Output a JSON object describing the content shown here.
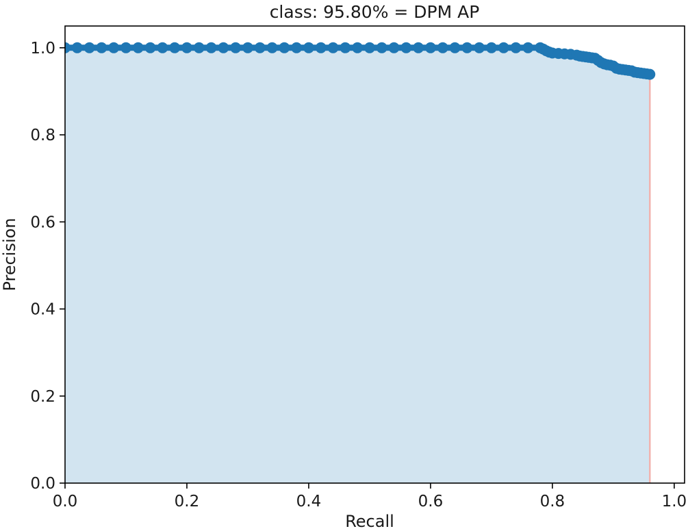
{
  "chart_data": {
    "type": "line",
    "title": "class: 95.80% = DPM AP",
    "xlabel": "Recall",
    "ylabel": "Precision",
    "xlim": [
      0.0,
      1.017
    ],
    "ylim": [
      0.0,
      1.05
    ],
    "x_tick_values": [
      0.0,
      0.2,
      0.4,
      0.6,
      0.8,
      1.0
    ],
    "x_tick_labels": [
      "0.0",
      "0.2",
      "0.4",
      "0.6",
      "0.8",
      "1.0"
    ],
    "y_tick_values": [
      0.0,
      0.2,
      0.4,
      0.6,
      0.8,
      1.0
    ],
    "y_tick_labels": [
      "0.0",
      "0.2",
      "0.4",
      "0.6",
      "0.8",
      "1.0"
    ],
    "grid": false,
    "legend": "none",
    "colors": {
      "curve": "#1f77b4",
      "fill_under_curve": "#d2e4f0",
      "recall_end_line": "#f2b3ae",
      "spine": "#000000"
    },
    "series": [
      {
        "name": "precision-recall-curve",
        "marker": "circle",
        "points": [
          [
            0.0,
            1.0
          ],
          [
            0.02,
            1.0
          ],
          [
            0.04,
            1.0
          ],
          [
            0.06,
            1.0
          ],
          [
            0.08,
            1.0
          ],
          [
            0.1,
            1.0
          ],
          [
            0.12,
            1.0
          ],
          [
            0.14,
            1.0
          ],
          [
            0.16,
            1.0
          ],
          [
            0.18,
            1.0
          ],
          [
            0.2,
            1.0
          ],
          [
            0.22,
            1.0
          ],
          [
            0.24,
            1.0
          ],
          [
            0.26,
            1.0
          ],
          [
            0.28,
            1.0
          ],
          [
            0.3,
            1.0
          ],
          [
            0.32,
            1.0
          ],
          [
            0.34,
            1.0
          ],
          [
            0.36,
            1.0
          ],
          [
            0.38,
            1.0
          ],
          [
            0.4,
            1.0
          ],
          [
            0.42,
            1.0
          ],
          [
            0.44,
            1.0
          ],
          [
            0.46,
            1.0
          ],
          [
            0.48,
            1.0
          ],
          [
            0.5,
            1.0
          ],
          [
            0.52,
            1.0
          ],
          [
            0.54,
            1.0
          ],
          [
            0.56,
            1.0
          ],
          [
            0.58,
            1.0
          ],
          [
            0.6,
            1.0
          ],
          [
            0.62,
            1.0
          ],
          [
            0.64,
            1.0
          ],
          [
            0.66,
            1.0
          ],
          [
            0.68,
            1.0
          ],
          [
            0.7,
            1.0
          ],
          [
            0.72,
            1.0
          ],
          [
            0.74,
            1.0
          ],
          [
            0.76,
            1.0
          ],
          [
            0.78,
            1.0
          ],
          [
            0.785,
            0.997
          ],
          [
            0.79,
            0.993
          ],
          [
            0.795,
            0.99
          ],
          [
            0.8,
            0.988
          ],
          [
            0.81,
            0.987
          ],
          [
            0.82,
            0.986
          ],
          [
            0.83,
            0.985
          ],
          [
            0.84,
            0.983
          ],
          [
            0.845,
            0.981
          ],
          [
            0.85,
            0.98
          ],
          [
            0.855,
            0.979
          ],
          [
            0.86,
            0.978
          ],
          [
            0.865,
            0.977
          ],
          [
            0.87,
            0.976
          ],
          [
            0.875,
            0.971
          ],
          [
            0.88,
            0.966
          ],
          [
            0.885,
            0.963
          ],
          [
            0.89,
            0.961
          ],
          [
            0.895,
            0.96
          ],
          [
            0.9,
            0.958
          ],
          [
            0.905,
            0.953
          ],
          [
            0.91,
            0.951
          ],
          [
            0.915,
            0.95
          ],
          [
            0.92,
            0.949
          ],
          [
            0.925,
            0.948
          ],
          [
            0.93,
            0.947
          ],
          [
            0.935,
            0.944
          ],
          [
            0.94,
            0.943
          ],
          [
            0.945,
            0.942
          ],
          [
            0.95,
            0.941
          ],
          [
            0.955,
            0.94
          ],
          [
            0.96,
            0.939
          ]
        ]
      }
    ],
    "annotations": [
      {
        "type": "vline",
        "x": 0.96,
        "from_y": 0.0,
        "to_y": 0.939
      }
    ]
  }
}
